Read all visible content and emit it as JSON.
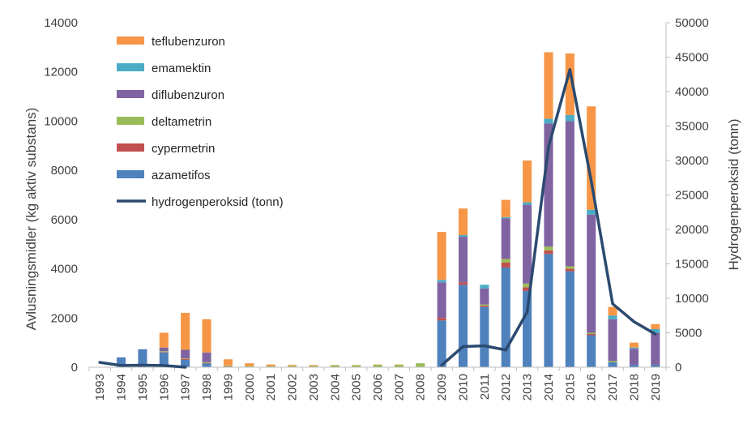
{
  "chart_data": {
    "type": "bar",
    "stacked": true,
    "title": "",
    "xlabel": "",
    "ylabel": "Avlusningsmidler (kg aktiv substans)",
    "ylabel_right": "Hydrogenperoksid (tonn)",
    "ylim": [
      0,
      14000
    ],
    "ylim_right": [
      0,
      50000
    ],
    "yticks": [
      "0",
      "2000",
      "4000",
      "6000",
      "8000",
      "10000",
      "12000",
      "14000"
    ],
    "yticks_right": [
      "0",
      "5000",
      "10000",
      "15000",
      "20000",
      "25000",
      "30000",
      "35000",
      "40000",
      "45000",
      "50000"
    ],
    "categories": [
      "1993",
      "1994",
      "1995",
      "1996",
      "1997",
      "1998",
      "1999",
      "2000",
      "2001",
      "2002",
      "2003",
      "2004",
      "2005",
      "2006",
      "2007",
      "2008",
      "2009",
      "2010",
      "2011",
      "2012",
      "2013",
      "2014",
      "2015",
      "2016",
      "2017",
      "2018",
      "2019"
    ],
    "series": [
      {
        "name": "azametifos",
        "color": "#4f81bd",
        "values": [
          0,
          400,
          730,
          600,
          300,
          150,
          20,
          0,
          0,
          0,
          0,
          0,
          0,
          0,
          0,
          0,
          1900,
          3350,
          2450,
          4050,
          3100,
          4600,
          3900,
          1300,
          200,
          100,
          100
        ]
      },
      {
        "name": "cypermetrin",
        "color": "#c0504d",
        "values": [
          0,
          0,
          0,
          20,
          30,
          20,
          20,
          20,
          20,
          20,
          20,
          10,
          10,
          10,
          10,
          10,
          100,
          100,
          50,
          200,
          150,
          150,
          100,
          50,
          0,
          0,
          0
        ]
      },
      {
        "name": "deltametrin",
        "color": "#9bbb59",
        "values": [
          0,
          0,
          0,
          30,
          30,
          30,
          30,
          30,
          30,
          30,
          40,
          70,
          70,
          90,
          90,
          150,
          0,
          0,
          50,
          150,
          150,
          150,
          100,
          50,
          50,
          0,
          0
        ]
      },
      {
        "name": "diflubenzuron",
        "color": "#8064a2",
        "values": [
          0,
          0,
          0,
          150,
          350,
          400,
          0,
          0,
          0,
          0,
          0,
          0,
          0,
          0,
          0,
          0,
          1450,
          1850,
          650,
          1650,
          3200,
          5000,
          5900,
          4800,
          1700,
          650,
          1300
        ]
      },
      {
        "name": "emamektin",
        "color": "#4bacc6",
        "values": [
          0,
          0,
          0,
          0,
          0,
          0,
          0,
          0,
          0,
          0,
          0,
          0,
          0,
          0,
          0,
          0,
          100,
          70,
          150,
          50,
          100,
          200,
          250,
          200,
          150,
          50,
          150
        ]
      },
      {
        "name": "teflubenzuron",
        "color": "#f79646",
        "values": [
          0,
          0,
          0,
          600,
          1500,
          1350,
          250,
          110,
          60,
          40,
          30,
          10,
          10,
          10,
          10,
          0,
          1950,
          1080,
          0,
          700,
          1700,
          2700,
          2500,
          4200,
          350,
          200,
          200
        ]
      }
    ],
    "line": {
      "name": "hydrogenperoksid (tonn)",
      "color": "#2b4a6f",
      "axis": "right",
      "values": [
        700,
        250,
        300,
        250,
        0,
        null,
        null,
        null,
        null,
        null,
        null,
        null,
        null,
        null,
        null,
        null,
        300,
        3000,
        3100,
        2500,
        8000,
        32000,
        43200,
        27000,
        9200,
        6600,
        4800
      ]
    },
    "legend": {
      "position": "top-left",
      "order": [
        "teflubenzuron",
        "emamektin",
        "diflubenzuron",
        "deltametrin",
        "cypermetrin",
        "azametifos",
        "hydrogenperoksid (tonn)"
      ]
    },
    "grid": false
  }
}
